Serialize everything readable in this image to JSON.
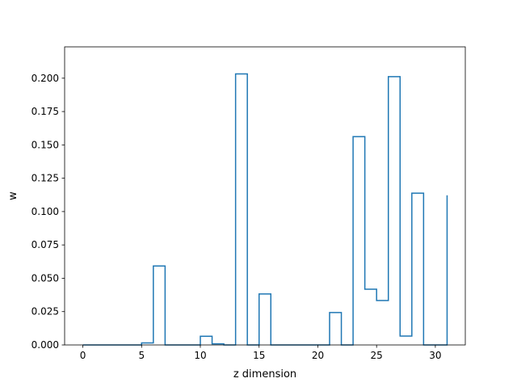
{
  "chart_data": {
    "type": "line",
    "style": "step",
    "title": "",
    "xlabel": "z dimension",
    "ylabel": "w",
    "xlim": [
      -1.55,
      32.55
    ],
    "ylim": [
      0,
      0.2235
    ],
    "xticks": [
      0,
      5,
      10,
      15,
      20,
      25,
      30
    ],
    "xtick_labels": [
      "0",
      "5",
      "10",
      "15",
      "20",
      "25",
      "30"
    ],
    "yticks": [
      0.0,
      0.025,
      0.05,
      0.075,
      0.1,
      0.125,
      0.15,
      0.175,
      0.2
    ],
    "ytick_labels": [
      "0.000",
      "0.025",
      "0.050",
      "0.075",
      "0.100",
      "0.125",
      "0.150",
      "0.175",
      "0.200"
    ],
    "grid": false,
    "legend": "none",
    "series_color": "#1f77b4",
    "x": [
      0,
      1,
      2,
      3,
      4,
      5,
      6,
      7,
      8,
      9,
      10,
      11,
      12,
      13,
      14,
      15,
      16,
      17,
      18,
      19,
      20,
      21,
      22,
      23,
      24,
      25,
      26,
      27,
      28,
      29,
      30,
      31
    ],
    "values": [
      0.0,
      0.0,
      0.0,
      0.0,
      0.0,
      0.0015,
      0.0592,
      0.0,
      0.0,
      0.0,
      0.0065,
      0.0008,
      0.0,
      0.2032,
      0.0,
      0.0382,
      0.0,
      0.0,
      0.0,
      0.0,
      0.0,
      0.0243,
      0.0,
      0.1562,
      0.0418,
      0.0333,
      0.2012,
      0.0067,
      0.1138,
      0.0,
      0.0,
      0.1122
    ]
  }
}
